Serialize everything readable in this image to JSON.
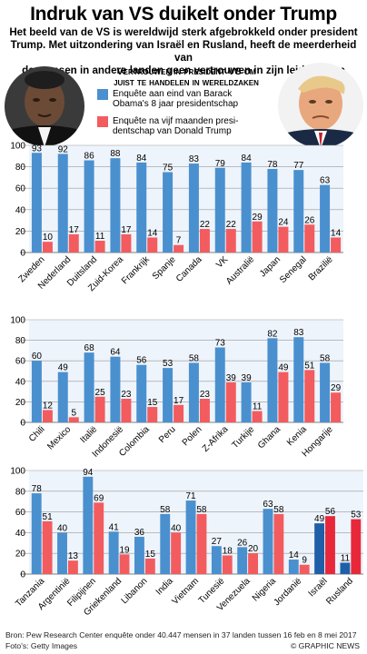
{
  "header": {
    "title": "Indruk van VS duikelt onder Trump",
    "subtitle_lines": [
      "Het beeld van de VS is wereldwijd sterk afgebrokkeld onder president",
      "Trump. Met uitzondering van Israël en Rusland, heeft de meerderheid van",
      "de mensen in andere landen geen vertrouwen in zijn leiderschap"
    ]
  },
  "legend": {
    "heading_lines": [
      "Vertrouwen in president VS om",
      "juist te handelen in wereldzaken"
    ],
    "obama_lines": [
      "Enquête aan eind van Barack",
      "Obama's 8 jaar presidentschap"
    ],
    "trump_lines": [
      "Enquête na vijf maanden presi-",
      "dentschap van Donald Trump"
    ]
  },
  "colors": {
    "obama": "#4a90cf",
    "trump": "#f25c5f",
    "obama_highlight": "#1f5fa8",
    "trump_highlight": "#e8283a",
    "gridline": "#999999",
    "panel_bg": "#eef4fb"
  },
  "chart_data": [
    {
      "type": "bar",
      "ylim": [
        0,
        100
      ],
      "yticks": [
        0,
        20,
        40,
        60,
        80,
        100
      ],
      "grid": true,
      "categories": [
        "Zweden",
        "Nederland",
        "Duitsland",
        "Zuid-Korea",
        "Frankrijk",
        "Spanje",
        "Canada",
        "VK",
        "Australië",
        "Japan",
        "Senegal",
        "Brazilië"
      ],
      "series": [
        {
          "values": [
            93,
            92,
            86,
            88,
            84,
            75,
            83,
            79,
            84,
            78,
            77,
            63
          ]
        },
        {
          "values": [
            10,
            17,
            11,
            17,
            14,
            7,
            22,
            22,
            29,
            24,
            26,
            14
          ]
        }
      ]
    },
    {
      "type": "bar",
      "ylim": [
        0,
        100
      ],
      "yticks": [
        0,
        20,
        40,
        60,
        80,
        100
      ],
      "grid": true,
      "categories": [
        "Chili",
        "Mexico",
        "Italië",
        "Indonesië",
        "Colombia",
        "Peru",
        "Polen",
        "Z-Afrika",
        "Turkije",
        "Ghana",
        "Kenia",
        "Hongarije"
      ],
      "series": [
        {
          "values": [
            60,
            49,
            68,
            64,
            56,
            53,
            58,
            73,
            39,
            82,
            83,
            58
          ]
        },
        {
          "values": [
            12,
            5,
            25,
            23,
            15,
            17,
            23,
            39,
            11,
            49,
            51,
            29
          ]
        }
      ]
    },
    {
      "type": "bar",
      "ylim": [
        0,
        100
      ],
      "yticks": [
        0,
        20,
        40,
        60,
        80,
        100
      ],
      "grid": true,
      "categories": [
        "Tanzania",
        "Argentinië",
        "Filipijnen",
        "Griekenland",
        "Libanon",
        "India",
        "Vietnam",
        "Tunesië",
        "Venezuela",
        "Nigeria",
        "Jordanië",
        "Israël",
        "Rusland"
      ],
      "series": [
        {
          "values": [
            78,
            40,
            94,
            41,
            36,
            58,
            71,
            27,
            26,
            63,
            14,
            49,
            11
          ]
        },
        {
          "values": [
            51,
            13,
            69,
            19,
            15,
            40,
            58,
            18,
            20,
            58,
            9,
            56,
            53
          ]
        }
      ],
      "highlight_categories": [
        "Israël",
        "Rusland"
      ]
    }
  ],
  "footer": {
    "source": "Bron: Pew Research Center enquête onder 40.447 mensen in 37 landen tussen 16 feb en 8 mei 2017",
    "photos": "Foto's: Getty Images",
    "copyright": "© GRAPHIC NEWS"
  }
}
